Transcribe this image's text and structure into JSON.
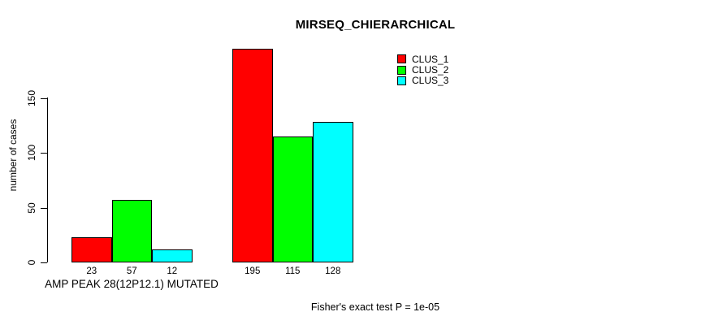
{
  "chart_data": {
    "type": "bar",
    "title": "MIRSEQ_CHIERARCHICAL",
    "ylabel": "number of cases",
    "xlabel": "",
    "ylim": [
      0,
      150
    ],
    "yticks": [
      0,
      50,
      100,
      150
    ],
    "grid": false,
    "legend_position": "top-right",
    "bar_border_color": "#000000",
    "series": [
      {
        "name": "CLUS_1",
        "color": "#ff0000"
      },
      {
        "name": "CLUS_2",
        "color": "#00ff00"
      },
      {
        "name": "CLUS_3",
        "color": "#00ffff"
      }
    ],
    "groups": [
      {
        "label": "AMP PEAK 28(12P12.1) MUTATED",
        "values": [
          23,
          57,
          12
        ]
      },
      {
        "label": "",
        "values": [
          195,
          115,
          128
        ]
      }
    ],
    "footnote": "Fisher's exact test P = 1e-05"
  }
}
